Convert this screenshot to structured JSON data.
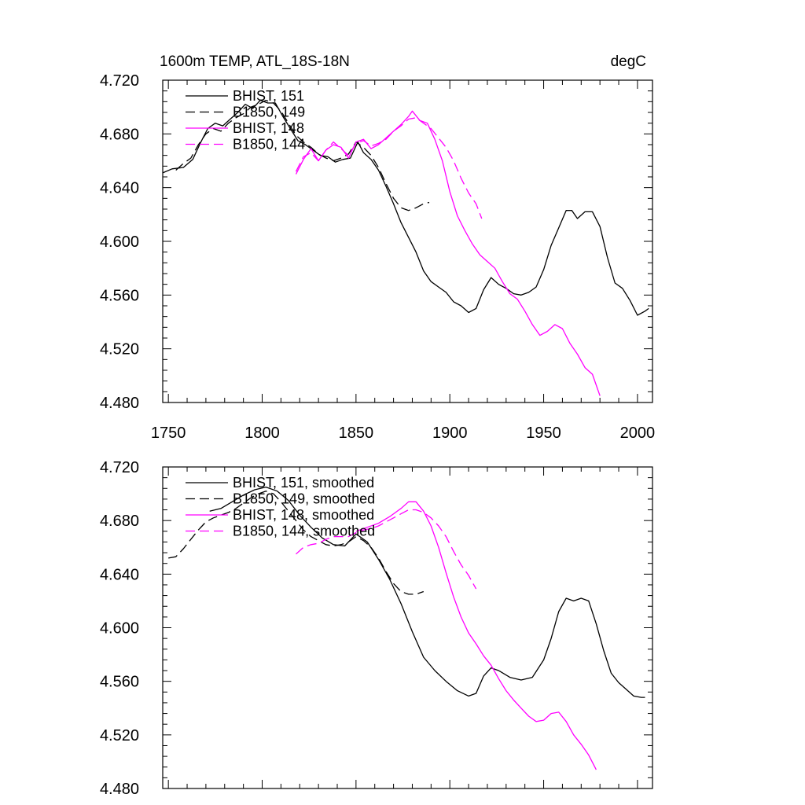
{
  "chart_data": [
    {
      "type": "line",
      "title": "1600m TEMP, ATL_18S-18N",
      "units": "degC",
      "xlim": [
        1747,
        2008
      ],
      "ylim": [
        4.48,
        4.72
      ],
      "x_ticks": [
        1750,
        1800,
        1850,
        1900,
        1950,
        2000
      ],
      "x_tick_labels": [
        "1750",
        "1800",
        "1850",
        "1900",
        "1950",
        "2000"
      ],
      "y_ticks": [
        4.48,
        4.52,
        4.56,
        4.6,
        4.64,
        4.68,
        4.72
      ],
      "y_tick_labels": [
        "4.480",
        "4.520",
        "4.560",
        "4.600",
        "4.640",
        "4.680",
        "4.720"
      ],
      "grid": false,
      "legend_position": "top-left",
      "series": [
        {
          "name": "BHIST, 151",
          "color": "#000000",
          "dash": "solid",
          "x": [
            1747,
            1752,
            1758,
            1763,
            1767,
            1771,
            1775,
            1779,
            1783,
            1787,
            1791,
            1795,
            1799,
            1803,
            1807,
            1811,
            1815,
            1819,
            1823,
            1827,
            1831,
            1835,
            1839,
            1843,
            1847,
            1851,
            1854,
            1858,
            1862,
            1866,
            1870,
            1874,
            1878,
            1882,
            1886,
            1890,
            1894,
            1898,
            1902,
            1906,
            1910,
            1914,
            1918,
            1922,
            1926,
            1930,
            1934,
            1938,
            1942,
            1946,
            1950,
            1954,
            1958,
            1962,
            1965,
            1968,
            1972,
            1976,
            1980,
            1984,
            1988,
            1992,
            1996,
            2000,
            2004,
            2006
          ],
          "y": [
            4.651,
            4.654,
            4.655,
            4.661,
            4.673,
            4.684,
            4.688,
            4.686,
            4.691,
            4.696,
            4.702,
            4.699,
            4.705,
            4.703,
            4.703,
            4.693,
            4.684,
            4.675,
            4.672,
            4.668,
            4.664,
            4.663,
            4.659,
            4.661,
            4.662,
            4.674,
            4.666,
            4.661,
            4.653,
            4.641,
            4.628,
            4.614,
            4.603,
            4.592,
            4.578,
            4.57,
            4.566,
            4.562,
            4.555,
            4.552,
            4.547,
            4.55,
            4.564,
            4.573,
            4.568,
            4.565,
            4.561,
            4.56,
            4.562,
            4.566,
            4.579,
            4.597,
            4.61,
            4.623,
            4.623,
            4.617,
            4.622,
            4.622,
            4.611,
            4.588,
            4.569,
            4.565,
            4.556,
            4.545,
            4.548,
            4.55
          ]
        },
        {
          "name": "B1850, 149",
          "color": "#000000",
          "dash": "dashed",
          "x": [
            1754,
            1758,
            1762,
            1766,
            1770,
            1774,
            1778,
            1782,
            1786,
            1790,
            1794,
            1798,
            1802,
            1806,
            1810,
            1814,
            1818,
            1822,
            1826,
            1830,
            1834,
            1838,
            1842,
            1846,
            1850,
            1854,
            1858,
            1862,
            1866,
            1870,
            1874,
            1878,
            1882,
            1886,
            1889
          ],
          "y": [
            4.653,
            4.658,
            4.662,
            4.672,
            4.68,
            4.684,
            4.682,
            4.688,
            4.692,
            4.695,
            4.7,
            4.702,
            4.705,
            4.703,
            4.697,
            4.688,
            4.679,
            4.674,
            4.67,
            4.665,
            4.662,
            4.66,
            4.662,
            4.665,
            4.674,
            4.67,
            4.664,
            4.655,
            4.643,
            4.632,
            4.625,
            4.623,
            4.625,
            4.628,
            4.629
          ]
        },
        {
          "name": "BHIST, 148",
          "color": "#ff00ff",
          "dash": "solid",
          "x": [
            1818,
            1822,
            1826,
            1830,
            1834,
            1838,
            1842,
            1846,
            1850,
            1854,
            1858,
            1862,
            1866,
            1870,
            1874,
            1878,
            1880,
            1884,
            1888,
            1892,
            1896,
            1900,
            1904,
            1908,
            1912,
            1916,
            1920,
            1924,
            1928,
            1932,
            1936,
            1940,
            1944,
            1948,
            1952,
            1956,
            1960,
            1964,
            1968,
            1972,
            1976,
            1980
          ],
          "y": [
            4.65,
            4.661,
            4.669,
            4.66,
            4.668,
            4.672,
            4.67,
            4.662,
            4.674,
            4.676,
            4.669,
            4.672,
            4.677,
            4.682,
            4.687,
            4.693,
            4.697,
            4.69,
            4.688,
            4.676,
            4.66,
            4.637,
            4.619,
            4.608,
            4.598,
            4.59,
            4.585,
            4.58,
            4.57,
            4.561,
            4.557,
            4.548,
            4.538,
            4.53,
            4.533,
            4.538,
            4.535,
            4.524,
            4.516,
            4.506,
            4.501,
            4.485
          ]
        },
        {
          "name": "B1850, 144",
          "color": "#ff00ff",
          "dash": "dashed",
          "x": [
            1818,
            1822,
            1826,
            1830,
            1834,
            1838,
            1842,
            1846,
            1850,
            1854,
            1858,
            1862,
            1866,
            1870,
            1874,
            1878,
            1882,
            1886,
            1890,
            1894,
            1898,
            1902,
            1906,
            1910,
            1914,
            1917
          ],
          "y": [
            4.652,
            4.663,
            4.666,
            4.66,
            4.668,
            4.674,
            4.669,
            4.664,
            4.673,
            4.675,
            4.671,
            4.673,
            4.676,
            4.682,
            4.686,
            4.691,
            4.692,
            4.688,
            4.684,
            4.677,
            4.67,
            4.66,
            4.647,
            4.636,
            4.628,
            4.617
          ]
        }
      ]
    },
    {
      "type": "line",
      "xlim": [
        1747,
        2008
      ],
      "ylim": [
        4.48,
        4.72
      ],
      "x_ticks": [
        1750,
        1800,
        1850,
        1900,
        1950,
        2000
      ],
      "y_ticks": [
        4.48,
        4.52,
        4.56,
        4.6,
        4.64,
        4.68,
        4.72
      ],
      "y_tick_labels": [
        "4.480",
        "4.520",
        "4.560",
        "4.600",
        "4.640",
        "4.680",
        "4.720"
      ],
      "grid": false,
      "legend_position": "top-left",
      "series": [
        {
          "name": "BHIST, 151, smoothed",
          "color": "#000000",
          "dash": "solid",
          "x": [
            1772,
            1778,
            1784,
            1790,
            1796,
            1802,
            1808,
            1814,
            1820,
            1826,
            1832,
            1838,
            1844,
            1850,
            1856,
            1862,
            1868,
            1874,
            1880,
            1886,
            1892,
            1898,
            1904,
            1910,
            1914,
            1918,
            1922,
            1926,
            1932,
            1938,
            1944,
            1950,
            1954,
            1958,
            1962,
            1966,
            1970,
            1974,
            1978,
            1982,
            1986,
            1990,
            1994,
            1998,
            2002,
            2004
          ],
          "y": [
            4.687,
            4.689,
            4.694,
            4.699,
            4.703,
            4.705,
            4.702,
            4.695,
            4.684,
            4.675,
            4.667,
            4.662,
            4.661,
            4.67,
            4.664,
            4.651,
            4.636,
            4.618,
            4.597,
            4.578,
            4.568,
            4.56,
            4.553,
            4.549,
            4.551,
            4.564,
            4.57,
            4.568,
            4.563,
            4.561,
            4.563,
            4.576,
            4.592,
            4.612,
            4.622,
            4.62,
            4.622,
            4.62,
            4.603,
            4.583,
            4.566,
            4.559,
            4.554,
            4.549,
            4.548,
            4.548
          ]
        },
        {
          "name": "B1850, 149, smoothed",
          "color": "#000000",
          "dash": "dashed",
          "x": [
            1750,
            1754,
            1758,
            1762,
            1766,
            1770,
            1774,
            1778,
            1782,
            1786,
            1790,
            1794,
            1798,
            1802,
            1806,
            1810,
            1814,
            1818,
            1822,
            1826,
            1830,
            1834,
            1838,
            1842,
            1846,
            1850,
            1854,
            1858,
            1862,
            1866,
            1870,
            1874,
            1878,
            1882,
            1886
          ],
          "y": [
            4.652,
            4.653,
            4.659,
            4.666,
            4.673,
            4.679,
            4.682,
            4.684,
            4.686,
            4.689,
            4.693,
            4.697,
            4.7,
            4.702,
            4.7,
            4.694,
            4.687,
            4.68,
            4.673,
            4.668,
            4.665,
            4.662,
            4.661,
            4.662,
            4.664,
            4.668,
            4.665,
            4.66,
            4.652,
            4.642,
            4.633,
            4.627,
            4.625,
            4.625,
            4.627
          ]
        },
        {
          "name": "BHIST, 148, smoothed",
          "color": "#ff00ff",
          "dash": "solid",
          "x": [
            1850,
            1856,
            1862,
            1868,
            1874,
            1878,
            1882,
            1886,
            1890,
            1894,
            1898,
            1902,
            1906,
            1910,
            1914,
            1918,
            1922,
            1926,
            1930,
            1934,
            1938,
            1942,
            1946,
            1950,
            1954,
            1958,
            1962,
            1966,
            1970,
            1974,
            1978
          ],
          "y": [
            4.672,
            4.675,
            4.678,
            4.683,
            4.689,
            4.694,
            4.694,
            4.687,
            4.676,
            4.66,
            4.641,
            4.623,
            4.608,
            4.596,
            4.588,
            4.579,
            4.572,
            4.562,
            4.553,
            4.546,
            4.54,
            4.534,
            4.53,
            4.531,
            4.536,
            4.537,
            4.53,
            4.52,
            4.513,
            4.505,
            4.494
          ]
        },
        {
          "name": "B1850, 144, smoothed",
          "color": "#ff00ff",
          "dash": "dashed",
          "x": [
            1818,
            1822,
            1826,
            1830,
            1834,
            1838,
            1842,
            1846,
            1850,
            1854,
            1858,
            1862,
            1866,
            1870,
            1874,
            1878,
            1882,
            1886,
            1890,
            1894,
            1898,
            1902,
            1906,
            1910,
            1914
          ],
          "y": [
            4.655,
            4.66,
            4.662,
            4.663,
            4.666,
            4.668,
            4.668,
            4.668,
            4.671,
            4.673,
            4.674,
            4.676,
            4.679,
            4.682,
            4.685,
            4.688,
            4.688,
            4.686,
            4.682,
            4.676,
            4.668,
            4.657,
            4.647,
            4.639,
            4.629
          ]
        }
      ]
    }
  ]
}
